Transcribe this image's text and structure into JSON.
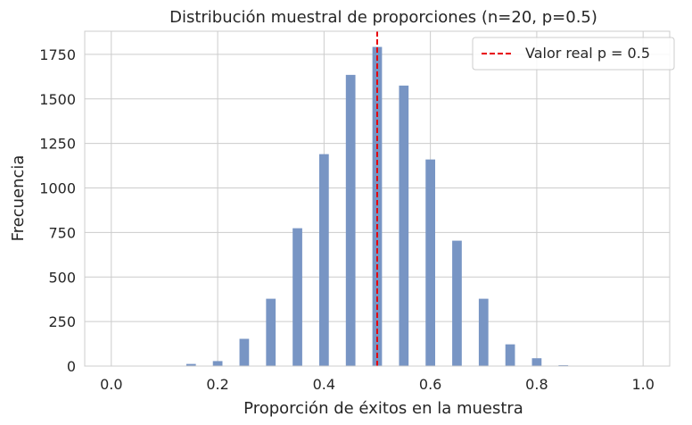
{
  "chart_data": {
    "type": "bar",
    "title": "Distribución muestral de proporciones (n=20, p=0.5)",
    "xlabel": "Proporción de éxitos en la muestra",
    "ylabel": "Frecuencia",
    "xlim": [
      -0.05,
      1.05
    ],
    "ylim": [
      0,
      1880
    ],
    "xticks": [
      0.0,
      0.2,
      0.4,
      0.6,
      0.8,
      1.0
    ],
    "xtick_labels": [
      "0.0",
      "0.2",
      "0.4",
      "0.6",
      "0.8",
      "1.0"
    ],
    "yticks": [
      0,
      250,
      500,
      750,
      1000,
      1250,
      1500,
      1750
    ],
    "ytick_labels": [
      "0",
      "250",
      "500",
      "750",
      "1000",
      "1250",
      "1500",
      "1750"
    ],
    "grid": true,
    "bar_color": "#7895c4",
    "bars": [
      {
        "x": 0.15,
        "count": 12
      },
      {
        "x": 0.2,
        "count": 28
      },
      {
        "x": 0.25,
        "count": 153
      },
      {
        "x": 0.3,
        "count": 378
      },
      {
        "x": 0.35,
        "count": 774
      },
      {
        "x": 0.4,
        "count": 1190
      },
      {
        "x": 0.45,
        "count": 1635
      },
      {
        "x": 0.5,
        "count": 1792
      },
      {
        "x": 0.55,
        "count": 1575
      },
      {
        "x": 0.6,
        "count": 1160
      },
      {
        "x": 0.65,
        "count": 704
      },
      {
        "x": 0.7,
        "count": 378
      },
      {
        "x": 0.75,
        "count": 122
      },
      {
        "x": 0.8,
        "count": 44
      },
      {
        "x": 0.85,
        "count": 5
      }
    ],
    "reference_line": {
      "x": 0.5,
      "color": "#e8000b",
      "style": "dashed",
      "label": "Valor real p = 0.5"
    },
    "legend": {
      "position": "top-right",
      "entries": [
        "Valor real p = 0.5"
      ]
    }
  }
}
